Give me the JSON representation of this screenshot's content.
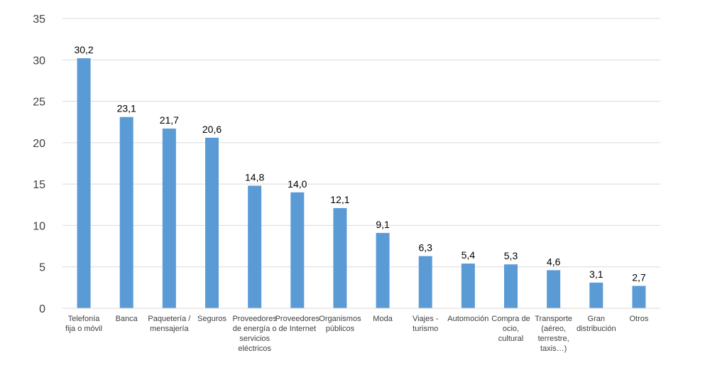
{
  "chart_data": {
    "type": "bar",
    "categories": [
      [
        "Telefonía",
        "fija o móvil"
      ],
      [
        "Banca"
      ],
      [
        "Paquetería /",
        "mensajería"
      ],
      [
        "Seguros"
      ],
      [
        "Proveedores",
        "de energía o",
        "servicios",
        "eléctricos"
      ],
      [
        "Proveedores",
        "de Internet"
      ],
      [
        "Organismos",
        "públicos"
      ],
      [
        "Moda"
      ],
      [
        "Viajes -",
        "turismo"
      ],
      [
        "Automoción"
      ],
      [
        "Compra de",
        "ocio,",
        "cultural"
      ],
      [
        "Transporte",
        "(aéreo,",
        "terrestre,",
        "taxis…)"
      ],
      [
        "Gran",
        "distribución"
      ],
      [
        "Otros"
      ]
    ],
    "values": [
      30.2,
      23.1,
      21.7,
      20.6,
      14.8,
      14.0,
      12.1,
      9.1,
      6.3,
      5.4,
      5.3,
      4.6,
      3.1,
      2.7
    ],
    "data_labels": [
      "30,2",
      "23,1",
      "21,7",
      "20,6",
      "14,8",
      "14,0",
      "12,1",
      "9,1",
      "6,3",
      "5,4",
      "5,3",
      "4,6",
      "3,1",
      "2,7"
    ],
    "yticks": [
      0,
      5,
      10,
      15,
      20,
      25,
      30,
      35
    ],
    "ylim": [
      0,
      35
    ],
    "grid": true,
    "bar_color": "#5B9BD5",
    "grid_color": "#D9D9D9",
    "title": "",
    "xlabel": "",
    "ylabel": ""
  }
}
